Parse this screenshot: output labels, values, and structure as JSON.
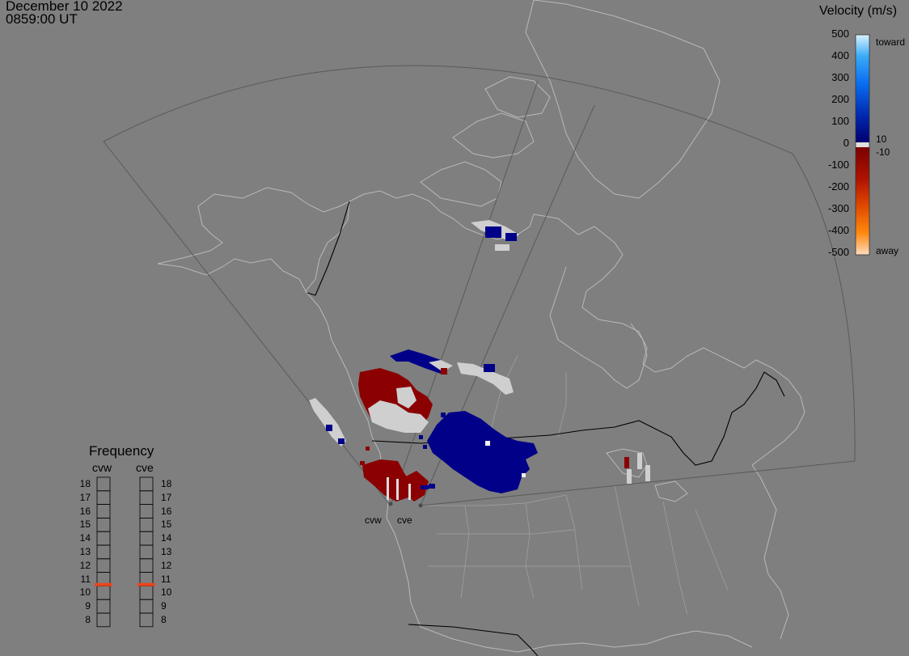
{
  "header": {
    "date": "December 10 2022",
    "time": "0859:00 UT"
  },
  "colorbar": {
    "title": "Velocity (m/s)",
    "ticks": [
      "500",
      "400",
      "300",
      "200",
      "100",
      "0",
      "-100",
      "-200",
      "-300",
      "-400",
      "-500"
    ],
    "inner_pos_label": "10",
    "inner_neg_label": "-10",
    "toward_label": "toward",
    "away_label": "away"
  },
  "frequency": {
    "title": "Frequency",
    "radars": [
      "cvw",
      "cve"
    ],
    "levels": [
      "18",
      "17",
      "16",
      "15",
      "14",
      "13",
      "12",
      "11",
      "10",
      "9",
      "8"
    ],
    "selected": [
      10.6,
      10.6
    ],
    "indicator_color": "#e8461c"
  },
  "map": {
    "radar_site_labels": [
      "cvw",
      "cve"
    ],
    "colors": {
      "toward": "#000088",
      "away": "#8b0000",
      "ground_scatter": "#cfcfcf",
      "coastline": "#b9b9b9",
      "border": "#000000",
      "fov": "#5a5a5a"
    }
  }
}
